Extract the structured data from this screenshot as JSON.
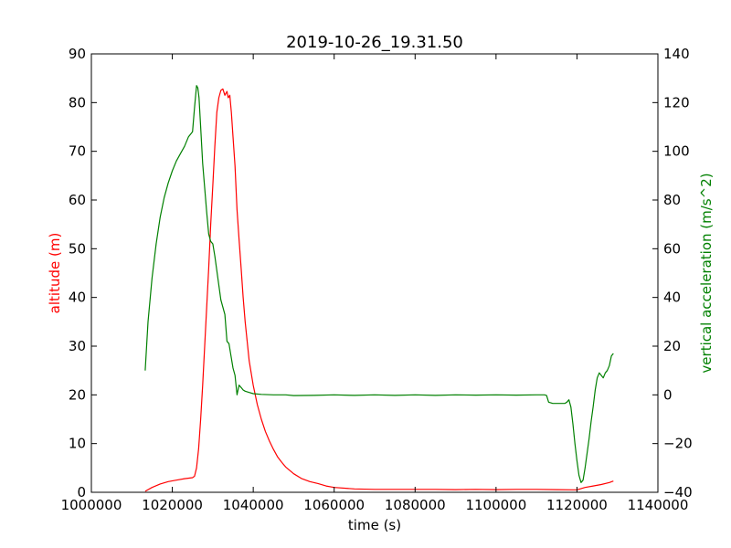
{
  "chart_data": {
    "type": "line",
    "title": "2019-10-26_19.31.50",
    "xlabel": "time (s)",
    "ylabel_left": "altitude (m)",
    "ylabel_right": "vertical acceleration (m/s^2)",
    "xlim": [
      1000000,
      1140000
    ],
    "ylim_left": [
      0,
      90
    ],
    "ylim_right": [
      -40,
      140
    ],
    "xticks": [
      1000000,
      1020000,
      1040000,
      1060000,
      1080000,
      1100000,
      1120000,
      1140000
    ],
    "xtick_labels": [
      "1000000",
      "1020000",
      "1040000",
      "1060000",
      "1080000",
      "1100000",
      "1120000",
      "1140000"
    ],
    "yticks_left": [
      0,
      10,
      20,
      30,
      40,
      50,
      60,
      70,
      80,
      90
    ],
    "ytick_labels_left": [
      "0",
      "10",
      "20",
      "30",
      "40",
      "50",
      "60",
      "70",
      "80",
      "90"
    ],
    "yticks_right": [
      -40,
      -20,
      0,
      20,
      40,
      60,
      80,
      100,
      120,
      140
    ],
    "ytick_labels_right": [
      "−40",
      "−20",
      "0",
      "20",
      "40",
      "60",
      "80",
      "100",
      "120",
      "140"
    ],
    "grid": false,
    "colors": {
      "altitude": "#ff0000",
      "acceleration": "#008000",
      "axes": "#000000"
    },
    "series": [
      {
        "axis": "left",
        "color": "#ff0000",
        "x": [
          1013300,
          1015000,
          1017000,
          1019000,
          1021000,
          1023000,
          1025000,
          1025500,
          1026000,
          1026500,
          1027000,
          1027500,
          1028000,
          1028500,
          1029000,
          1029500,
          1030000,
          1030500,
          1031000,
          1031500,
          1032000,
          1032500,
          1033000,
          1033500,
          1033800,
          1034200,
          1034600,
          1035000,
          1035500,
          1036000,
          1036500,
          1037000,
          1037500,
          1038000,
          1038500,
          1039000,
          1040000,
          1041000,
          1042000,
          1043000,
          1044000,
          1045000,
          1046000,
          1047000,
          1048000,
          1050000,
          1052000,
          1054000,
          1056000,
          1058000,
          1060000,
          1065000,
          1070000,
          1075000,
          1080000,
          1085000,
          1090000,
          1095000,
          1100000,
          1105000,
          1110000,
          1115000,
          1119000,
          1120000,
          1122000,
          1124000,
          1126000,
          1128000,
          1129000
        ],
        "y": [
          0.2,
          1.0,
          1.7,
          2.2,
          2.5,
          2.8,
          3.0,
          3.3,
          5.0,
          9.0,
          15.0,
          22.0,
          30.0,
          38.0,
          46.0,
          55.0,
          63.0,
          71.0,
          78.0,
          81.0,
          82.5,
          82.8,
          81.5,
          82.3,
          81.0,
          81.5,
          78.0,
          73.0,
          67.0,
          58.0,
          52.0,
          46.0,
          40.0,
          35.0,
          31.0,
          27.0,
          22.0,
          18.0,
          15.0,
          12.5,
          10.5,
          8.8,
          7.3,
          6.2,
          5.2,
          3.8,
          2.8,
          2.2,
          1.8,
          1.3,
          1.0,
          0.7,
          0.6,
          0.6,
          0.6,
          0.6,
          0.55,
          0.6,
          0.55,
          0.6,
          0.6,
          0.55,
          0.5,
          0.5,
          1.0,
          1.3,
          1.6,
          2.0,
          2.3
        ]
      },
      {
        "axis": "right",
        "color": "#008000",
        "x": [
          1013300,
          1014000,
          1015000,
          1016000,
          1017000,
          1018000,
          1019000,
          1020000,
          1021000,
          1022000,
          1023000,
          1024000,
          1025000,
          1025500,
          1026000,
          1026300,
          1026600,
          1027000,
          1027500,
          1028000,
          1028500,
          1029000,
          1029500,
          1030000,
          1030500,
          1031000,
          1031500,
          1032000,
          1032500,
          1033000,
          1033500,
          1034000,
          1034500,
          1035000,
          1035500,
          1036000,
          1036500,
          1037000,
          1037500,
          1038000,
          1039000,
          1040000,
          1042000,
          1045000,
          1048000,
          1050000,
          1055000,
          1060000,
          1065000,
          1070000,
          1075000,
          1080000,
          1085000,
          1090000,
          1095000,
          1100000,
          1105000,
          1110000,
          1112000,
          1112500,
          1113000,
          1114000,
          1115000,
          1116000,
          1117000,
          1117500,
          1118000,
          1118500,
          1119000,
          1119500,
          1120000,
          1120500,
          1121000,
          1121500,
          1122000,
          1122500,
          1123000,
          1123500,
          1124000,
          1124500,
          1125000,
          1125500,
          1126000,
          1126500,
          1127000,
          1127500,
          1128000,
          1128500,
          1129000
        ],
        "y": [
          10,
          30,
          48,
          62,
          73,
          81,
          87,
          92,
          96,
          99,
          102,
          106,
          108,
          118,
          127,
          126,
          122,
          110,
          95,
          85,
          75,
          66,
          63,
          62,
          57,
          51,
          45,
          39,
          36,
          33,
          22,
          21,
          16,
          11,
          8,
          0,
          4,
          3,
          2,
          1.5,
          1,
          0.5,
          0.2,
          0,
          0,
          -0.3,
          -0.2,
          0,
          -0.2,
          0,
          -0.2,
          0,
          -0.2,
          0,
          -0.1,
          0,
          -0.1,
          0,
          0,
          -0.3,
          -3,
          -3.5,
          -3.5,
          -3.5,
          -3.5,
          -3,
          -2,
          -5,
          -12,
          -20,
          -27,
          -33,
          -36,
          -35,
          -30,
          -24,
          -18,
          -11,
          -5,
          2,
          7,
          9,
          8,
          7,
          9,
          10,
          12,
          16,
          17
        ]
      }
    ]
  }
}
